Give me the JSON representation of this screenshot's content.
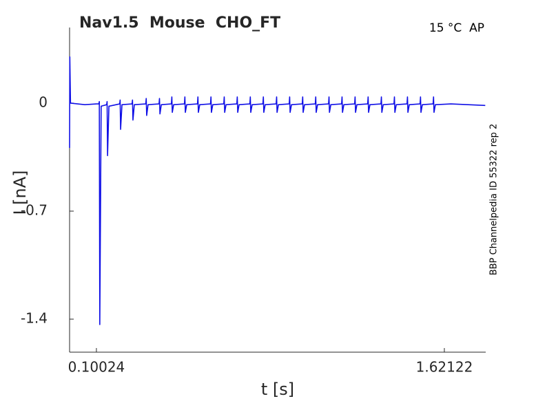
{
  "chart_data": {
    "type": "line",
    "title": "Nav1.5  Mouse  CHO_FT",
    "annotation": "15 °C  AP",
    "side_label": "BBP Channelpedia ID 55322 rep 2",
    "xlabel": "t [s]",
    "ylabel": "I [nA]",
    "color": "#0f0fe6",
    "xlim": [
      -0.017,
      1.802
    ],
    "ylim": [
      -1.614,
      0.49
    ],
    "xticks": [
      0.10024,
      1.62122
    ],
    "yticks": [
      -1.4,
      -0.7,
      0
    ],
    "x": [
      -0.017,
      -0.016,
      -0.013,
      0.05,
      0.1,
      0.111,
      0.113,
      0.115,
      0.121,
      0.145,
      0.147,
      0.149,
      0.155,
      0.202,
      0.204,
      0.206,
      0.212,
      0.256,
      0.258,
      0.26,
      0.266,
      0.316,
      0.318,
      0.32,
      0.326,
      0.374,
      0.376,
      0.378,
      0.384,
      0.428,
      0.43,
      0.432,
      0.438,
      0.485,
      0.487,
      0.489,
      0.495,
      0.542,
      0.544,
      0.546,
      0.552,
      0.599,
      0.601,
      0.603,
      0.609,
      0.657,
      0.659,
      0.661,
      0.667,
      0.714,
      0.716,
      0.718,
      0.724,
      0.771,
      0.773,
      0.775,
      0.781,
      0.828,
      0.83,
      0.832,
      0.838,
      0.886,
      0.888,
      0.89,
      0.896,
      0.943,
      0.945,
      0.947,
      0.953,
      1,
      1.002,
      1.004,
      1.01,
      1.057,
      1.059,
      1.061,
      1.067,
      1.115,
      1.117,
      1.119,
      1.125,
      1.172,
      1.174,
      1.176,
      1.182,
      1.229,
      1.231,
      1.233,
      1.239,
      1.286,
      1.288,
      1.29,
      1.296,
      1.344,
      1.346,
      1.348,
      1.354,
      1.401,
      1.403,
      1.405,
      1.411,
      1.458,
      1.46,
      1.462,
      1.468,
      1.515,
      1.517,
      1.519,
      1.525,
      1.572,
      1.574,
      1.576,
      1.582,
      1.65,
      1.8
    ],
    "values": [
      -0.29,
      0.3,
      0,
      -0.01,
      -0.005,
      -0.005,
      0.01,
      -1.435,
      -0.02,
      -0.01,
      0.01,
      -0.34,
      -0.02,
      -0.005,
      0.02,
      -0.17,
      -0.01,
      -0.005,
      0.02,
      -0.11,
      -0.01,
      -0.005,
      0.03,
      -0.08,
      -0.01,
      -0.005,
      0.03,
      -0.07,
      -0.01,
      -0.005,
      0.04,
      -0.06,
      -0.01,
      -0.005,
      0.04,
      -0.06,
      -0.01,
      -0.005,
      0.04,
      -0.06,
      -0.01,
      -0.005,
      0.04,
      -0.06,
      -0.01,
      -0.005,
      0.04,
      -0.06,
      -0.01,
      -0.005,
      0.04,
      -0.06,
      -0.01,
      -0.005,
      0.04,
      -0.06,
      -0.01,
      -0.005,
      0.04,
      -0.06,
      -0.01,
      -0.005,
      0.04,
      -0.06,
      -0.01,
      -0.005,
      0.04,
      -0.06,
      -0.01,
      -0.005,
      0.04,
      -0.06,
      -0.01,
      -0.005,
      0.04,
      -0.06,
      -0.01,
      -0.005,
      0.04,
      -0.06,
      -0.01,
      -0.005,
      0.04,
      -0.06,
      -0.01,
      -0.005,
      0.04,
      -0.06,
      -0.01,
      -0.005,
      0.04,
      -0.06,
      -0.01,
      -0.005,
      0.04,
      -0.06,
      -0.01,
      -0.005,
      0.04,
      -0.06,
      -0.01,
      -0.005,
      0.04,
      -0.06,
      -0.01,
      -0.005,
      0.04,
      -0.06,
      -0.01,
      -0.005,
      0.04,
      -0.06,
      -0.01,
      -0.005,
      -0.015
    ]
  }
}
